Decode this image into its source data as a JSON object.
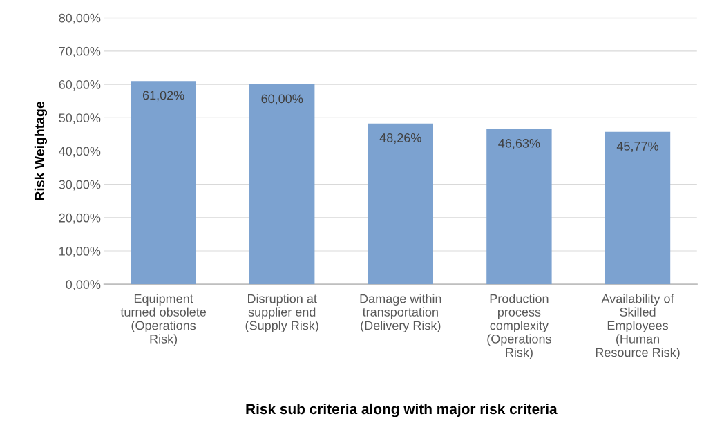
{
  "chart_data": {
    "type": "bar",
    "xlabel": "Risk sub criteria along with major risk criteria",
    "ylabel": "Risk Weightage",
    "categories": [
      "Equipment\nturned obsolete\n(Operations\nRisk)",
      "Disruption at\nsupplier end\n(Supply Risk)",
      "Damage within\ntransportation\n(Delivery Risk)",
      "Production\nprocess\ncomplexity\n(Operations\nRisk)",
      "Availability of\nSkilled\nEmployees\n(Human\nResource Risk)"
    ],
    "values": [
      61.02,
      60.0,
      48.26,
      46.63,
      45.77
    ],
    "value_labels": [
      "61,02%",
      "60,00%",
      "48,26%",
      "46,63%",
      "45,77%"
    ],
    "color": "#7ca2d0",
    "ylim": [
      0,
      80
    ],
    "yticks": [
      {
        "value": 0,
        "label": "0,00%"
      },
      {
        "value": 10,
        "label": "10,00%"
      },
      {
        "value": 20,
        "label": "20,00%"
      },
      {
        "value": 30,
        "label": "30,00%"
      },
      {
        "value": 40,
        "label": "40,00%"
      },
      {
        "value": 50,
        "label": "50,00%"
      },
      {
        "value": 60,
        "label": "60,00%"
      },
      {
        "value": 70,
        "label": "70,00%"
      },
      {
        "value": 80,
        "label": "80,00%"
      }
    ],
    "grid": "y",
    "legend": false
  }
}
